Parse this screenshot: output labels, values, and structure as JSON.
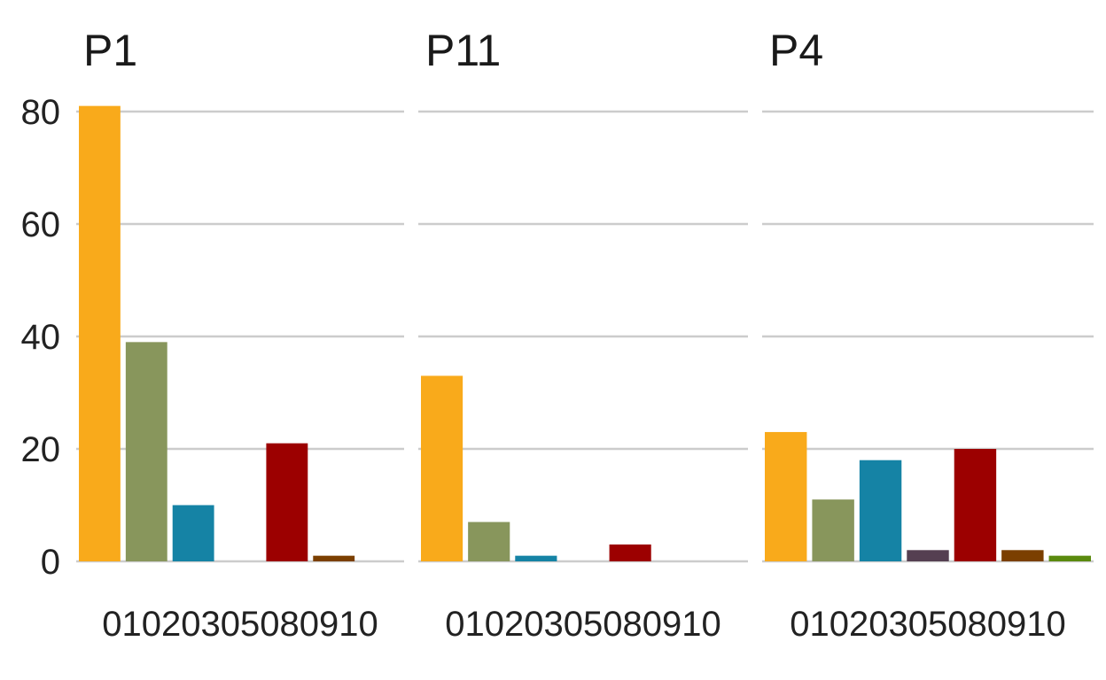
{
  "chart_data": {
    "type": "bar",
    "layout": "faceted",
    "categories": [
      "01",
      "02",
      "03",
      "05",
      "08",
      "09",
      "10"
    ],
    "category_colors": [
      "#F9AA1B",
      "#88965C",
      "#1583A5",
      "#553F51",
      "#9C0000",
      "#7B3F00",
      "#5A8A0E"
    ],
    "ylim": [
      0,
      80
    ],
    "yticks": [
      0,
      20,
      40,
      60,
      80
    ],
    "grid": "horizontal",
    "legend": "none",
    "xlabel": "",
    "ylabel": "",
    "panels": [
      {
        "title": "P1",
        "values": [
          81,
          39,
          10,
          0,
          21,
          1,
          0
        ]
      },
      {
        "title": "P11",
        "values": [
          33,
          7,
          1,
          0,
          3,
          0,
          0
        ]
      },
      {
        "title": "P4",
        "values": [
          23,
          11,
          18,
          2,
          20,
          2,
          1
        ]
      }
    ]
  }
}
